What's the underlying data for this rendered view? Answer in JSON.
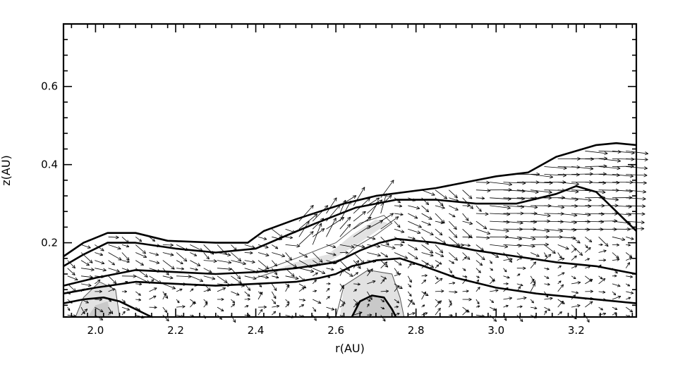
{
  "chart_data": {
    "type": "contour-vector",
    "title": "",
    "xlabel": "r(AU)",
    "ylabel": "z(AU)",
    "xlim": [
      1.92,
      3.35
    ],
    "ylim": [
      0.01,
      0.76
    ],
    "x_ticks": [
      "2.0",
      "2.2",
      "2.4",
      "2.6",
      "2.8",
      "3.0",
      "3.2"
    ],
    "x_tick_values": [
      2.0,
      2.2,
      2.4,
      2.6,
      2.8,
      3.0,
      3.2
    ],
    "y_ticks": [
      "0.2",
      "0.4",
      "0.6"
    ],
    "y_tick_values": [
      0.2,
      0.4,
      0.6
    ],
    "grid": false,
    "colors": {
      "contour_thick": "#000000",
      "contour_thin": "#555555",
      "fill_light": "#e2e2e2",
      "fill_mid": "#c9c9c9",
      "fill_dark": "#aaaaaa",
      "vector": "#000000"
    },
    "contours_thick": [
      [
        [
          1.92,
          0.165
        ],
        [
          1.97,
          0.2
        ],
        [
          2.03,
          0.225
        ],
        [
          2.1,
          0.225
        ],
        [
          2.18,
          0.205
        ],
        [
          2.3,
          0.2
        ],
        [
          2.38,
          0.2
        ],
        [
          2.42,
          0.23
        ],
        [
          2.5,
          0.26
        ],
        [
          2.56,
          0.28
        ],
        [
          2.62,
          0.3
        ],
        [
          2.7,
          0.32
        ],
        [
          2.85,
          0.34
        ],
        [
          3.0,
          0.37
        ],
        [
          3.08,
          0.38
        ],
        [
          3.15,
          0.42
        ],
        [
          3.25,
          0.45
        ],
        [
          3.3,
          0.455
        ],
        [
          3.35,
          0.45
        ]
      ],
      [
        [
          1.92,
          0.14
        ],
        [
          1.97,
          0.17
        ],
        [
          2.03,
          0.2
        ],
        [
          2.1,
          0.2
        ],
        [
          2.2,
          0.185
        ],
        [
          2.3,
          0.175
        ],
        [
          2.4,
          0.185
        ],
        [
          2.48,
          0.22
        ],
        [
          2.55,
          0.25
        ],
        [
          2.6,
          0.27
        ],
        [
          2.65,
          0.29
        ],
        [
          2.75,
          0.31
        ],
        [
          2.85,
          0.31
        ],
        [
          2.95,
          0.3
        ],
        [
          3.05,
          0.3
        ],
        [
          3.15,
          0.325
        ],
        [
          3.2,
          0.345
        ],
        [
          3.25,
          0.33
        ],
        [
          3.3,
          0.28
        ],
        [
          3.35,
          0.23
        ]
      ],
      [
        [
          1.92,
          0.09
        ],
        [
          2.0,
          0.11
        ],
        [
          2.1,
          0.13
        ],
        [
          2.2,
          0.125
        ],
        [
          2.3,
          0.12
        ],
        [
          2.4,
          0.125
        ],
        [
          2.5,
          0.135
        ],
        [
          2.6,
          0.15
        ],
        [
          2.66,
          0.18
        ],
        [
          2.71,
          0.2
        ],
        [
          2.75,
          0.21
        ],
        [
          2.85,
          0.2
        ],
        [
          2.95,
          0.18
        ],
        [
          3.05,
          0.165
        ],
        [
          3.15,
          0.15
        ],
        [
          3.25,
          0.14
        ],
        [
          3.35,
          0.12
        ]
      ],
      [
        [
          1.92,
          0.07
        ],
        [
          2.0,
          0.085
        ],
        [
          2.1,
          0.1
        ],
        [
          2.2,
          0.095
        ],
        [
          2.3,
          0.09
        ],
        [
          2.4,
          0.095
        ],
        [
          2.5,
          0.1
        ],
        [
          2.56,
          0.11
        ],
        [
          2.6,
          0.12
        ],
        [
          2.64,
          0.14
        ],
        [
          2.7,
          0.155
        ],
        [
          2.76,
          0.16
        ],
        [
          2.82,
          0.14
        ],
        [
          2.9,
          0.11
        ],
        [
          3.0,
          0.085
        ],
        [
          3.1,
          0.07
        ],
        [
          3.2,
          0.06
        ],
        [
          3.3,
          0.05
        ],
        [
          3.35,
          0.045
        ]
      ],
      [
        [
          1.92,
          0.045
        ],
        [
          1.97,
          0.055
        ],
        [
          2.02,
          0.06
        ],
        [
          2.06,
          0.05
        ],
        [
          2.1,
          0.03
        ],
        [
          2.14,
          0.01
        ]
      ],
      [
        [
          2.64,
          0.01
        ],
        [
          2.66,
          0.05
        ],
        [
          2.69,
          0.065
        ],
        [
          2.72,
          0.06
        ],
        [
          2.74,
          0.03
        ],
        [
          2.75,
          0.01
        ]
      ]
    ],
    "contours_thin": [
      [
        [
          1.95,
          0.01
        ],
        [
          1.97,
          0.06
        ],
        [
          2.01,
          0.1
        ],
        [
          2.05,
          0.08
        ],
        [
          2.06,
          0.01
        ]
      ],
      [
        [
          2.6,
          0.01
        ],
        [
          2.62,
          0.09
        ],
        [
          2.68,
          0.13
        ],
        [
          2.74,
          0.12
        ],
        [
          2.76,
          0.06
        ],
        [
          2.77,
          0.01
        ]
      ],
      [
        [
          2.4,
          0.11
        ],
        [
          2.46,
          0.13
        ],
        [
          2.55,
          0.14
        ],
        [
          2.62,
          0.16
        ],
        [
          2.65,
          0.19
        ],
        [
          2.7,
          0.22
        ],
        [
          2.74,
          0.25
        ],
        [
          2.72,
          0.27
        ],
        [
          2.66,
          0.25
        ],
        [
          2.6,
          0.2
        ],
        [
          2.5,
          0.16
        ],
        [
          2.42,
          0.13
        ]
      ]
    ],
    "fill_regions": [
      {
        "shade": "fill_light",
        "points": [
          [
            1.95,
            0.01
          ],
          [
            1.97,
            0.06
          ],
          [
            2.01,
            0.1
          ],
          [
            2.05,
            0.08
          ],
          [
            2.06,
            0.01
          ]
        ]
      },
      {
        "shade": "fill_mid",
        "points": [
          [
            1.98,
            0.01
          ],
          [
            2.0,
            0.04
          ],
          [
            2.03,
            0.05
          ],
          [
            2.04,
            0.01
          ]
        ]
      },
      {
        "shade": "fill_light",
        "points": [
          [
            2.61,
            0.01
          ],
          [
            2.62,
            0.09
          ],
          [
            2.68,
            0.13
          ],
          [
            2.74,
            0.12
          ],
          [
            2.76,
            0.06
          ],
          [
            2.77,
            0.01
          ]
        ]
      },
      {
        "shade": "fill_mid",
        "points": [
          [
            2.64,
            0.01
          ],
          [
            2.66,
            0.05
          ],
          [
            2.69,
            0.065
          ],
          [
            2.72,
            0.06
          ],
          [
            2.74,
            0.03
          ],
          [
            2.75,
            0.01
          ]
        ]
      },
      {
        "shade": "fill_light",
        "points": [
          [
            2.42,
            0.12
          ],
          [
            2.5,
            0.15
          ],
          [
            2.58,
            0.17
          ],
          [
            2.64,
            0.22
          ],
          [
            2.7,
            0.26
          ],
          [
            2.73,
            0.25
          ],
          [
            2.66,
            0.2
          ],
          [
            2.58,
            0.15
          ],
          [
            2.48,
            0.13
          ]
        ]
      }
    ],
    "vector_field": {
      "x_range": [
        1.93,
        3.35
      ],
      "z_range": [
        0.015,
        0.45
      ],
      "x_step": 0.034,
      "z_step": 0.02,
      "max_length_au": 0.08
    }
  }
}
